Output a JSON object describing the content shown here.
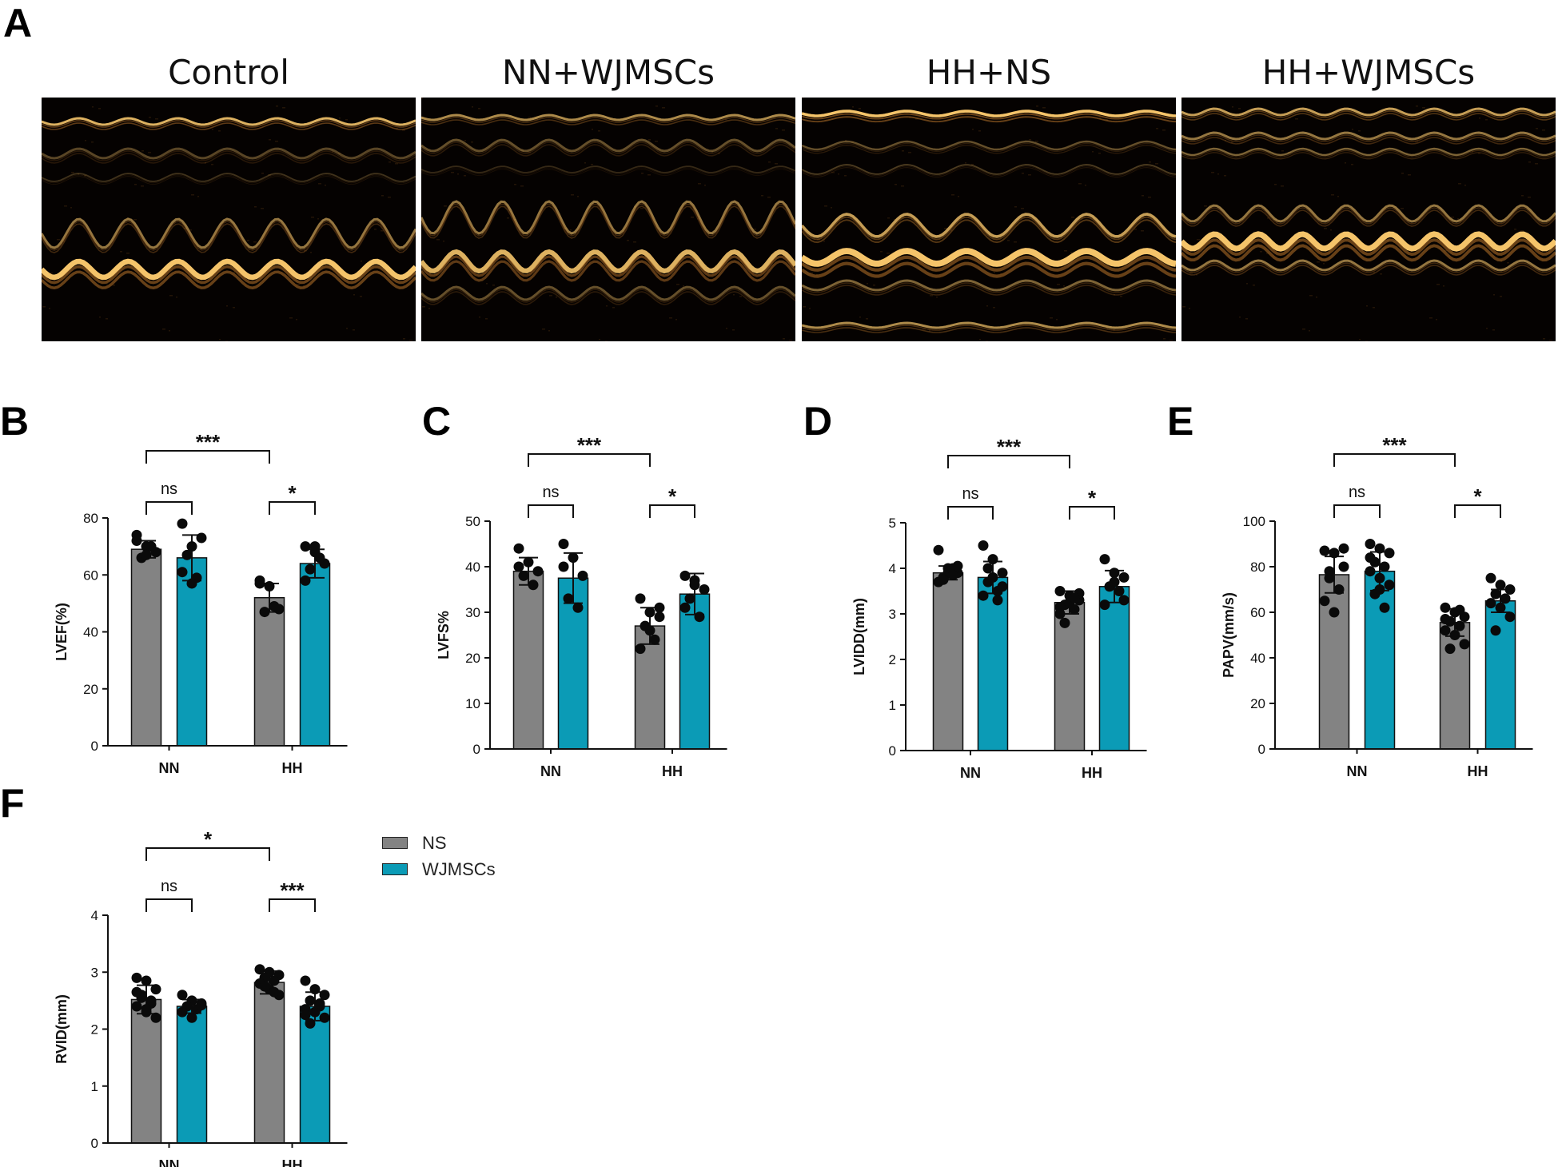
{
  "panels": {
    "A": "A",
    "B": "B",
    "C": "C",
    "D": "D",
    "E": "E",
    "F": "F"
  },
  "echo_titles": [
    "Control",
    "NN+WJMSCs",
    "HH+NS",
    "HH+WJMSCs"
  ],
  "colors": {
    "ns": "#838383",
    "wjmscs": "#0b9bb6",
    "echo_bright": "#f5c46a",
    "echo_mid": "#a86a26"
  },
  "legend": {
    "ns_label": "NS",
    "wjmscs_label": "WJMSCs"
  },
  "chart_data": [
    {
      "id": "B",
      "type": "bar",
      "ylabel": "LVEF(%)",
      "categories": [
        "NN",
        "HH"
      ],
      "ylim": [
        0,
        80
      ],
      "yticks": [
        0,
        20,
        40,
        60,
        80
      ],
      "series": [
        {
          "name": "NS",
          "values": [
            69,
            52
          ],
          "err": [
            3,
            5
          ],
          "points": [
            [
              72,
              70,
              68,
              66,
              70,
              74,
              67
            ],
            [
              57,
              56,
              48,
              47,
              49,
              58
            ]
          ]
        },
        {
          "name": "WJMSCs",
          "values": [
            66,
            64
          ],
          "err": [
            8,
            5
          ],
          "points": [
            [
              78,
              70,
              73,
              67,
              59,
              61,
              57
            ],
            [
              70,
              68,
              64,
              62,
              66,
              58,
              70
            ]
          ]
        }
      ],
      "annotations": [
        {
          "between": "NN-NS vs HH-NS",
          "label": "***"
        },
        {
          "between": "NN-NS vs NN-WJMSCs",
          "label": "ns"
        },
        {
          "between": "HH-NS vs HH-WJMSCs",
          "label": "*"
        }
      ]
    },
    {
      "id": "C",
      "type": "bar",
      "ylabel": "LVFS%",
      "categories": [
        "NN",
        "HH"
      ],
      "ylim": [
        0,
        50
      ],
      "yticks": [
        0,
        10,
        20,
        30,
        40,
        50
      ],
      "series": [
        {
          "name": "NS",
          "values": [
            39,
            27
          ],
          "err": [
            3,
            4
          ],
          "points": [
            [
              44,
              41,
              39,
              38,
              36,
              40
            ],
            [
              33,
              30,
              29,
              27,
              24,
              22,
              26,
              31
            ]
          ]
        },
        {
          "name": "WJMSCs",
          "values": [
            37.5,
            34
          ],
          "err": [
            5.5,
            4.5
          ],
          "points": [
            [
              45,
              42,
              38,
              33,
              31,
              40
            ],
            [
              38,
              37,
              35,
              33,
              29,
              31,
              36
            ]
          ]
        }
      ],
      "annotations": [
        {
          "between": "NN-NS vs HH-NS",
          "label": "***"
        },
        {
          "between": "NN-NS vs NN-WJMSCs",
          "label": "ns"
        },
        {
          "between": "HH-NS vs HH-WJMSCs",
          "label": "*"
        }
      ]
    },
    {
      "id": "D",
      "type": "bar",
      "ylabel": "LVIDD(mm)",
      "categories": [
        "NN",
        "HH"
      ],
      "ylim": [
        0,
        5
      ],
      "yticks": [
        0,
        1,
        2,
        3,
        4,
        5
      ],
      "series": [
        {
          "name": "NS",
          "values": [
            3.9,
            3.25
          ],
          "err": [
            0.15,
            0.25
          ],
          "points": [
            [
              4.4,
              4.0,
              3.9,
              3.8,
              4.0,
              3.7,
              3.9,
              4.05,
              3.75,
              3.85
            ],
            [
              3.5,
              3.4,
              3.3,
              3.2,
              3.1,
              3.0,
              3.25,
              3.45,
              2.8,
              3.35,
              3.15
            ]
          ]
        },
        {
          "name": "WJMSCs",
          "values": [
            3.8,
            3.6
          ],
          "err": [
            0.35,
            0.35
          ],
          "points": [
            [
              4.5,
              4.2,
              3.9,
              3.7,
              3.5,
              3.4,
              3.8,
              3.6,
              4.0,
              3.3
            ],
            [
              4.2,
              3.9,
              3.8,
              3.6,
              3.5,
              3.2,
              3.7,
              3.3
            ]
          ]
        }
      ],
      "annotations": [
        {
          "between": "NN-NS vs HH-NS",
          "label": "***"
        },
        {
          "between": "NN-NS vs NN-WJMSCs",
          "label": "ns"
        },
        {
          "between": "HH-NS vs HH-WJMSCs",
          "label": "*"
        }
      ]
    },
    {
      "id": "E",
      "type": "bar",
      "ylabel": "PAPV(mm/s)",
      "categories": [
        "NN",
        "HH"
      ],
      "ylim": [
        0,
        100
      ],
      "yticks": [
        0,
        20,
        40,
        60,
        80,
        100
      ],
      "series": [
        {
          "name": "NS",
          "values": [
            76.5,
            55.5
          ],
          "err": [
            8,
            6
          ],
          "points": [
            [
              87,
              86,
              80,
              75,
              70,
              65,
              60,
              88,
              78
            ],
            [
              62,
              60,
              58,
              56,
              54,
              52,
              50,
              46,
              44,
              61,
              57
            ]
          ]
        },
        {
          "name": "WJMSCs",
          "values": [
            78,
            65
          ],
          "err": [
            8.5,
            5
          ],
          "points": [
            [
              90,
              88,
              86,
              82,
              80,
              78,
              75,
              72,
              68,
              62,
              84,
              70
            ],
            [
              75,
              72,
              70,
              68,
              66,
              64,
              62,
              58,
              52
            ]
          ]
        }
      ],
      "annotations": [
        {
          "between": "NN-NS vs HH-NS",
          "label": "***"
        },
        {
          "between": "NN-NS vs NN-WJMSCs",
          "label": "ns"
        },
        {
          "between": "HH-NS vs HH-WJMSCs",
          "label": "*"
        }
      ]
    },
    {
      "id": "F",
      "type": "bar",
      "ylabel": "RVID(mm)",
      "categories": [
        "NN",
        "HH"
      ],
      "ylim": [
        0,
        4
      ],
      "yticks": [
        0,
        1,
        2,
        3,
        4
      ],
      "series": [
        {
          "name": "NS",
          "values": [
            2.52,
            2.82
          ],
          "err": [
            0.25,
            0.2
          ],
          "points": [
            [
              2.9,
              2.85,
              2.7,
              2.6,
              2.5,
              2.4,
              2.3,
              2.2,
              2.55,
              2.45,
              2.65,
              2.35
            ],
            [
              3.05,
              3.0,
              2.95,
              2.9,
              2.85,
              2.8,
              2.7,
              2.6,
              2.75,
              2.65
            ]
          ]
        },
        {
          "name": "WJMSCs",
          "values": [
            2.4,
            2.4
          ],
          "err": [
            0.12,
            0.25
          ],
          "points": [
            [
              2.6,
              2.5,
              2.45,
              2.4,
              2.35,
              2.3,
              2.2,
              2.42
            ],
            [
              2.85,
              2.7,
              2.6,
              2.5,
              2.4,
              2.35,
              2.3,
              2.2,
              2.1,
              2.45,
              2.25
            ]
          ]
        }
      ],
      "annotations": [
        {
          "between": "NN-NS vs HH-NS",
          "label": "*"
        },
        {
          "between": "NN-NS vs NN-WJMSCs",
          "label": "ns"
        },
        {
          "between": "HH-NS vs HH-WJMSCs",
          "label": "***"
        }
      ]
    }
  ]
}
